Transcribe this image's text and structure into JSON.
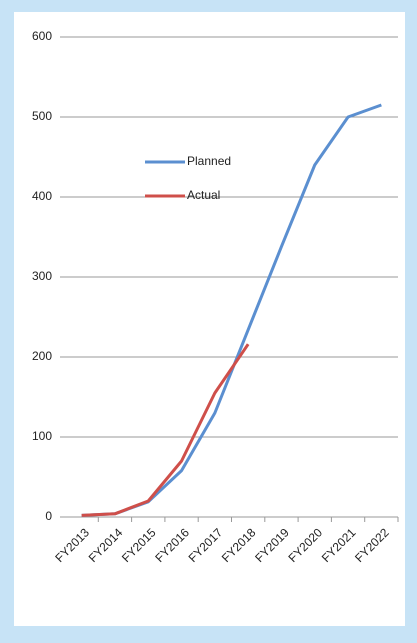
{
  "chart_data": {
    "type": "line",
    "categories": [
      "FY2013",
      "FY2014",
      "FY2015",
      "FY2016",
      "FY2017",
      "FY2018",
      "FY2019",
      "FY2020",
      "FY2021",
      "FY2022"
    ],
    "series": [
      {
        "name": "Planned",
        "color": "#5b8fd0",
        "values": [
          2,
          4,
          19,
          58,
          130,
          234,
          338,
          440,
          500,
          515
        ]
      },
      {
        "name": "Actual",
        "color": "#cf4f4a",
        "values": [
          2,
          4,
          20,
          70,
          155,
          216,
          null,
          null,
          null,
          null
        ]
      }
    ],
    "ylim": [
      0,
      600
    ],
    "yticks": [
      0,
      100,
      200,
      300,
      400,
      500,
      600
    ],
    "grid": true
  }
}
